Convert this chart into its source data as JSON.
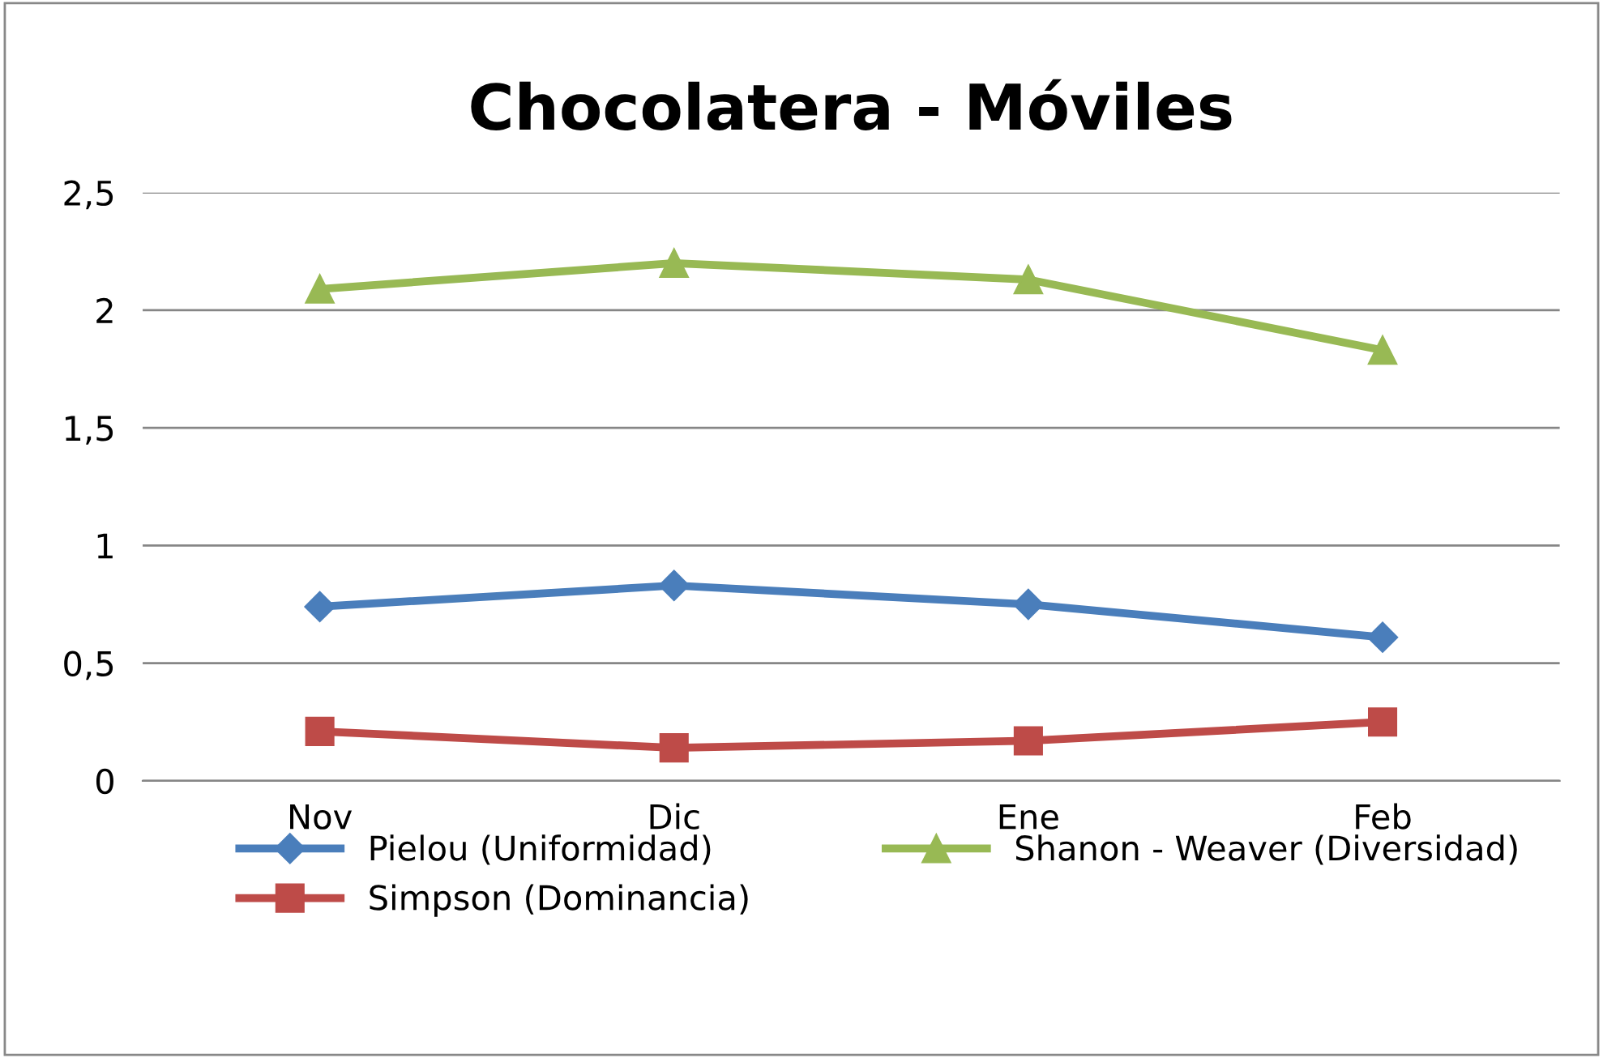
{
  "chart_data": {
    "type": "line",
    "title": "Chocolatera - Móviles",
    "categories": [
      "Nov",
      "Dic",
      "Ene",
      "Feb"
    ],
    "series": [
      {
        "name": "Pielou (Uniformidad)",
        "color": "#4a7ebb",
        "marker": "diamond",
        "values": [
          0.74,
          0.83,
          0.75,
          0.61
        ]
      },
      {
        "name": "Simpson (Dominancia)",
        "color": "#be4b48",
        "marker": "square",
        "values": [
          0.21,
          0.14,
          0.17,
          0.25
        ]
      },
      {
        "name": "Shanon - Weaver (Diversidad)",
        "color": "#98b954",
        "marker": "triangle",
        "values": [
          2.09,
          2.2,
          2.13,
          1.83
        ]
      }
    ],
    "ylim": [
      0,
      2.5
    ],
    "yticks": [
      0,
      {
        "value": 0.5,
        "label": "0,5"
      },
      1,
      {
        "value": 1.5,
        "label": "1,5"
      },
      2,
      {
        "value": 2.5,
        "label": "2,5"
      }
    ],
    "grid": "y",
    "legend": "bottom"
  }
}
